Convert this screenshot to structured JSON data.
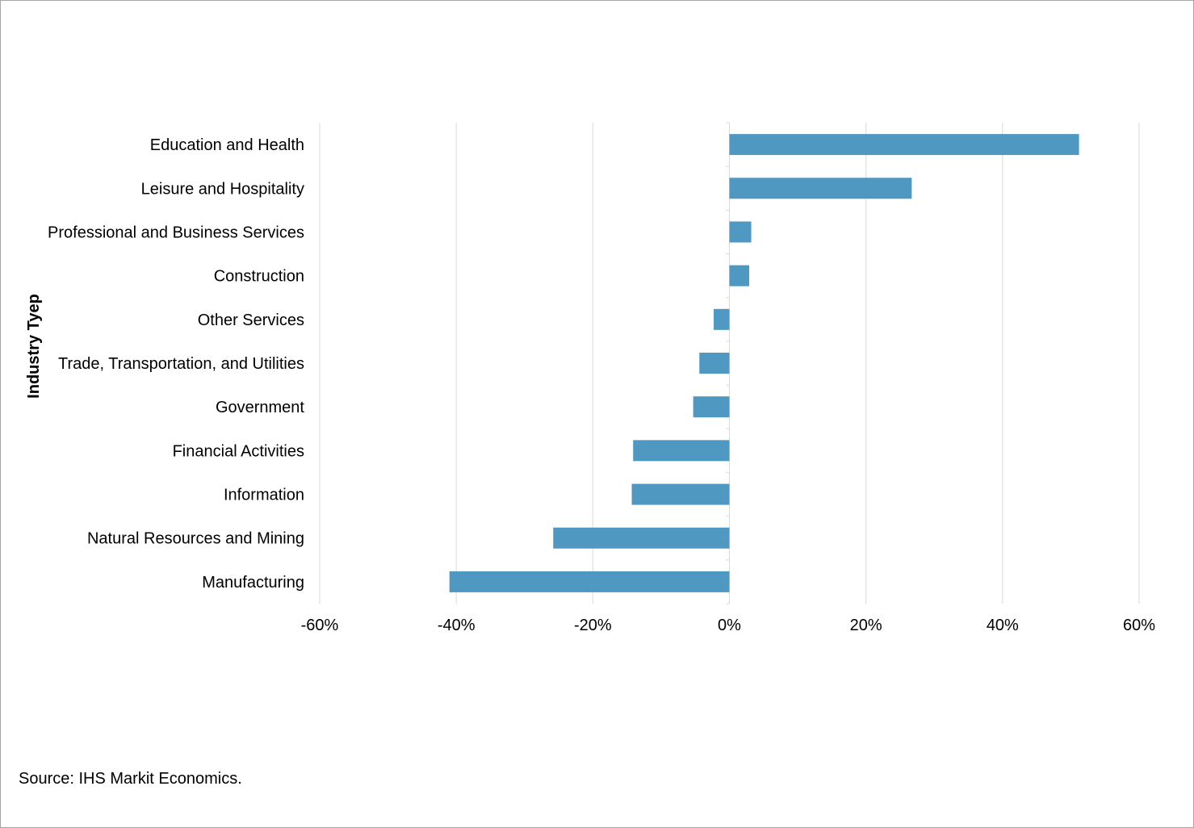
{
  "chart_data": {
    "type": "bar",
    "orientation": "horizontal",
    "ylabel": "Industry Tyep",
    "xlim": [
      -60,
      60
    ],
    "x_ticks": [
      -60,
      -40,
      -20,
      0,
      20,
      40,
      60
    ],
    "x_tick_labels": [
      "-60%",
      "-40%",
      "-20%",
      "0%",
      "20%",
      "40%",
      "60%"
    ],
    "grid": "vertical",
    "bar_color": "#4f98c2",
    "categories": [
      "Education and Health",
      "Leisure and Hospitality",
      "Professional and Business Services",
      "Construction",
      "Other Services",
      "Trade, Transportation, and Utilities",
      "Government",
      "Financial Activities",
      "Information",
      "Natural Resources and Mining",
      "Manufacturing"
    ],
    "values": [
      51.2,
      26.7,
      3.2,
      2.9,
      -2.3,
      -4.4,
      -5.3,
      -14.1,
      -14.3,
      -25.8,
      -41.0
    ]
  },
  "source": "Source: IHS Markit Economics."
}
